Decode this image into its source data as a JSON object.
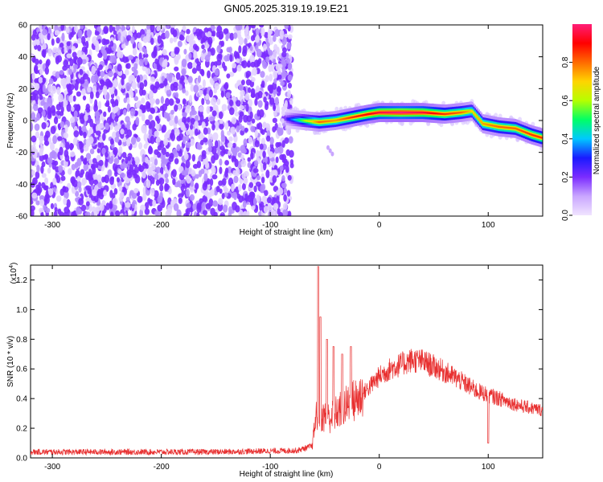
{
  "title": "GN05.2025.319.19.19.E21",
  "chart_data": [
    {
      "type": "heatmap",
      "xlabel": "Height of straight line (km)",
      "ylabel": "Frequency (Hz)",
      "xlim": [
        -320,
        150
      ],
      "ylim": [
        -60,
        60
      ],
      "xticks": [
        -300,
        -200,
        -100,
        0,
        100
      ],
      "yticks": [
        -60,
        -40,
        -20,
        0,
        20,
        40,
        60
      ],
      "colorbar": {
        "label": "Normalized spectral amplitude",
        "range": [
          0,
          1
        ],
        "ticks": [
          0.0,
          0.2,
          0.4,
          0.6,
          0.8
        ],
        "colormap": [
          "#f0e4ff",
          "#c9a6ff",
          "#7b2cff",
          "#1a1aff",
          "#00c8ff",
          "#00ff66",
          "#b6ff00",
          "#ffd400",
          "#ff6a00",
          "#ff0000",
          "#ff1e78"
        ]
      },
      "noise_region": {
        "x": [
          -320,
          -80
        ],
        "y": [
          -60,
          60
        ],
        "amplitude_range": [
          0.0,
          0.15
        ],
        "color": "#7b2cff"
      },
      "ridge": {
        "x": [
          -85,
          -70,
          -55,
          -40,
          -25,
          -10,
          0,
          20,
          40,
          60,
          75,
          85,
          95,
          110,
          125,
          140,
          150
        ],
        "y": [
          1,
          0,
          -1,
          0,
          2,
          4,
          5,
          5,
          5,
          4,
          5,
          6,
          -2,
          -4,
          -5,
          -9,
          -11
        ],
        "amplitude": [
          0.25,
          0.55,
          0.8,
          0.75,
          0.85,
          0.9,
          0.95,
          1.0,
          0.95,
          0.85,
          0.8,
          0.7,
          0.75,
          0.8,
          0.8,
          0.85,
          0.85
        ]
      }
    },
    {
      "type": "line",
      "xlabel": "Height of straight line (km)",
      "ylabel": "SNR (10 * v/v)",
      "scale_label": "(x10",
      "scale_exp": "4",
      "scale_close": ")",
      "xlim": [
        -320,
        150
      ],
      "ylim": [
        0,
        1.3
      ],
      "xticks": [
        -300,
        -200,
        -100,
        0,
        100
      ],
      "yticks": [
        0.0,
        0.2,
        0.4,
        0.6,
        0.8,
        1.0,
        1.2
      ],
      "color": "#e83030",
      "envelope": {
        "x": [
          -320,
          -150,
          -75,
          -62,
          -58,
          -55,
          -52,
          -45,
          -35,
          -20,
          -10,
          0,
          10,
          20,
          30,
          40,
          55,
          70,
          90,
          110,
          130,
          150
        ],
        "y": [
          0.02,
          0.02,
          0.03,
          0.06,
          0.28,
          0.3,
          0.28,
          0.27,
          0.33,
          0.4,
          0.47,
          0.55,
          0.6,
          0.63,
          0.66,
          0.65,
          0.6,
          0.54,
          0.45,
          0.4,
          0.35,
          0.32
        ]
      },
      "peaks": [
        {
          "x": -56,
          "y": 1.29
        },
        {
          "x": -54,
          "y": 0.95
        },
        {
          "x": -48,
          "y": 0.8
        },
        {
          "x": -42,
          "y": 0.75
        },
        {
          "x": -34,
          "y": 0.7
        },
        {
          "x": -26,
          "y": 0.75
        },
        {
          "x": 100,
          "y": 0.1
        }
      ]
    }
  ]
}
